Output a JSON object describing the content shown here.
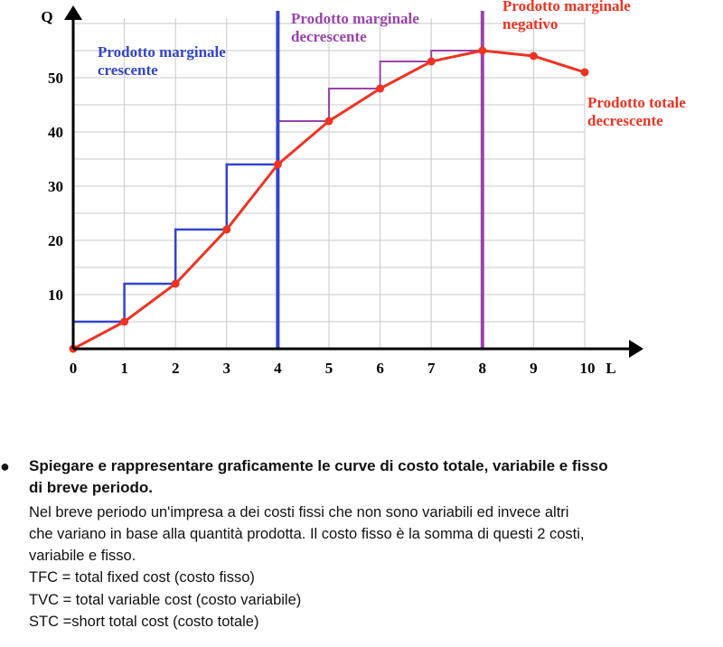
{
  "chart_data": {
    "type": "line",
    "title": "",
    "xlabel": "L",
    "ylabel": "Q",
    "xlim": [
      0,
      11
    ],
    "ylim": [
      0,
      63
    ],
    "x_ticks": [
      "0",
      "1",
      "2",
      "3",
      "4",
      "5",
      "6",
      "7",
      "8",
      "9",
      "10"
    ],
    "y_ticks": [
      "10",
      "20",
      "30",
      "40",
      "50"
    ],
    "grid": true,
    "series": [
      {
        "x": [
          0,
          1,
          2,
          3,
          4,
          5,
          6,
          7,
          8,
          9,
          10
        ],
        "values": [
          0,
          5,
          12,
          22,
          34,
          42,
          48,
          53,
          55,
          54,
          51
        ],
        "color": "#ee3322"
      }
    ],
    "marginal_steps": [
      {
        "from": 0,
        "to": 1,
        "level": 5,
        "color": "#3344cc"
      },
      {
        "from": 1,
        "to": 2,
        "level": 12,
        "color": "#3344cc"
      },
      {
        "from": 2,
        "to": 3,
        "level": 22,
        "color": "#3344cc"
      },
      {
        "from": 3,
        "to": 4,
        "level": 34,
        "color": "#3344cc"
      },
      {
        "from": 4,
        "to": 5,
        "level": 42,
        "color": "#9944aa"
      },
      {
        "from": 5,
        "to": 6,
        "level": 48,
        "color": "#9944aa"
      },
      {
        "from": 6,
        "to": 7,
        "level": 53,
        "color": "#9944aa"
      },
      {
        "from": 7,
        "to": 8,
        "level": 55,
        "color": "#9944aa"
      }
    ],
    "vertical_lines": [
      {
        "x": 4,
        "color": "#3344cc"
      },
      {
        "x": 8,
        "color": "#9944aa"
      }
    ],
    "annotations": [
      {
        "id": "crescente",
        "lines": [
          "Prodotto marginale",
          "crescente"
        ],
        "color": "#3344cc"
      },
      {
        "id": "decrescente",
        "lines": [
          "Prodotto marginale",
          "decrescente"
        ],
        "color": "#9944aa"
      },
      {
        "id": "negativo",
        "lines": [
          "Prodotto marginale",
          "negativo"
        ],
        "color": "#ee3322"
      },
      {
        "id": "totale",
        "lines": [
          "Prodotto totale",
          "decrescente"
        ],
        "color": "#ee3322"
      }
    ]
  },
  "text": {
    "bullet": "●",
    "question_line1": "Spiegare e rappresentare graficamente le curve di costo totale, variabile e fisso",
    "question_line2": "di breve periodo.",
    "para_line1": "Nel breve periodo un'impresa a dei costi fissi che non sono variabili ed invece altri",
    "para_line2": "che variano in base alla quantità prodotta. Il costo fisso è la somma di questi 2 costi,",
    "para_line3": "variabile e fisso.",
    "tfc": "TFC = total fixed cost (costo fisso)",
    "tvc": "TVC = total variable cost (costo variabile)",
    "stc": "STC =short total cost (costo totale)"
  }
}
